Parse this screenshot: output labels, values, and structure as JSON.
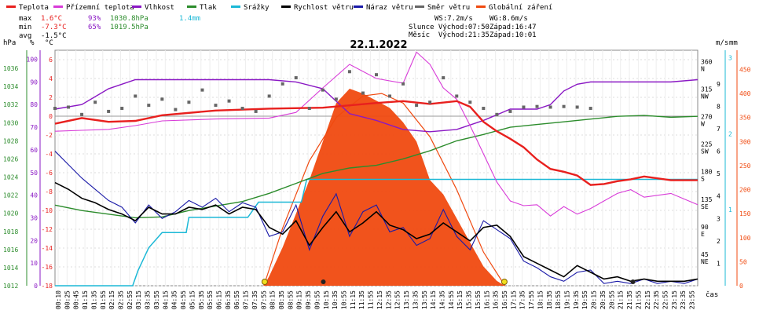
{
  "legend": [
    {
      "label": "Teplota",
      "color": "#e8201e"
    },
    {
      "label": "Přízemní teplota",
      "color": "#d83bd8"
    },
    {
      "label": "Vlhkost",
      "color": "#8a18c4"
    },
    {
      "label": "Tlak",
      "color": "#2c8c2c"
    },
    {
      "label": "Srážky",
      "color": "#1bb8d6"
    },
    {
      "label": "Rychlost větru",
      "color": "#000000"
    },
    {
      "label": "Náraz větru",
      "color": "#1a1aa8"
    },
    {
      "label": "Směr větru",
      "color": "#666666"
    },
    {
      "label": "Globální záření",
      "color": "#f04a10"
    }
  ],
  "stats": {
    "max": {
      "label": "max",
      "temp": "1.6°C",
      "hum": "93%",
      "press": "1030.8hPa",
      "rain": "1.4mm"
    },
    "min": {
      "label": "min",
      "temp": "-7.3°C",
      "hum": "65%",
      "press": "1019.5hPa"
    },
    "avg": {
      "label": "avg",
      "temp": "-1.5°C"
    },
    "ws": "WS:7.2m/s",
    "wg": "WG:8.6m/s",
    "sun_rise": "Slunce Východ:07:50",
    "sun_set": "Západ:16:47",
    "moon_rise": "Měsíc  Východ:21:35",
    "moon_set": "Západ:10:01"
  },
  "colors": {
    "temp": "#e8201e",
    "dew": "#d83bd8",
    "hum": "#8a18c4",
    "press": "#2c8c2c",
    "rain": "#1bb8d6",
    "wind": "#000000",
    "gust": "#1a1aa8",
    "dir": "#666666",
    "solar": "#f04a10",
    "grid": "#c8c8c8"
  },
  "chart_data": {
    "type": "line",
    "title": "22.1.2022",
    "xlabel": "čas",
    "x_ticks": [
      "00:10",
      "00:25",
      "00:45",
      "01:15",
      "01:35",
      "01:55",
      "02:15",
      "02:35",
      "02:55",
      "03:15",
      "03:35",
      "03:55",
      "04:15",
      "04:35",
      "04:55",
      "05:15",
      "05:35",
      "05:55",
      "06:15",
      "06:35",
      "06:55",
      "07:15",
      "07:35",
      "07:55",
      "08:15",
      "08:35",
      "08:55",
      "09:15",
      "09:35",
      "09:55",
      "10:15",
      "10:35",
      "10:55",
      "11:15",
      "11:35",
      "11:55",
      "12:15",
      "12:35",
      "12:55",
      "13:15",
      "13:35",
      "13:55",
      "14:15",
      "14:35",
      "14:55",
      "15:15",
      "15:35",
      "15:55",
      "16:15",
      "16:35",
      "16:55",
      "17:15",
      "17:35",
      "17:55",
      "18:15",
      "18:35",
      "18:55",
      "19:15",
      "19:35",
      "19:55",
      "20:15",
      "20:35",
      "20:55",
      "21:15",
      "21:35",
      "21:55",
      "22:15",
      "22:35",
      "22:55",
      "23:15",
      "23:35",
      "23:55"
    ],
    "axes": {
      "hPa": {
        "label": "hPa",
        "range": [
          1012,
          1038
        ],
        "ticks": [
          1012,
          1014,
          1016,
          1018,
          1020,
          1022,
          1024,
          1026,
          1028,
          1030,
          1032,
          1034,
          1036
        ]
      },
      "percent": {
        "label": "%",
        "range": [
          0,
          104
        ],
        "ticks": [
          0,
          10,
          20,
          30,
          40,
          50,
          60,
          70,
          80,
          90,
          100
        ]
      },
      "celsius": {
        "label": "°C",
        "range": [
          -18,
          7
        ],
        "ticks": [
          -18,
          -16,
          -14,
          -12,
          -10,
          -8,
          -6,
          -4,
          -2,
          0,
          2,
          4,
          6
        ]
      },
      "ms": {
        "label": "m/s",
        "range": [
          0,
          10.5
        ],
        "ticks": [
          1,
          2,
          3,
          4,
          5,
          6,
          7,
          8,
          9
        ]
      },
      "mm": {
        "label": "mm",
        "range": [
          0,
          3.1
        ],
        "ticks": [
          1,
          2,
          3
        ]
      },
      "direction": {
        "label": "",
        "ticks": [
          {
            "v": 45,
            "l": "NE"
          },
          {
            "v": 90,
            "l": "E"
          },
          {
            "v": 135,
            "l": "SE"
          },
          {
            "v": 180,
            "l": "S"
          },
          {
            "v": 225,
            "l": "SW"
          },
          {
            "v": 270,
            "l": "W"
          },
          {
            "v": 315,
            "l": "NW"
          },
          {
            "v": 360,
            "l": "N"
          }
        ]
      },
      "solar": {
        "label": "",
        "ticks": [
          0,
          50,
          100,
          150,
          200,
          250,
          300,
          350,
          400,
          450
        ]
      }
    },
    "series": [
      {
        "name": "Teplota",
        "unit": "°C",
        "x": [
          0,
          1,
          2,
          3,
          4,
          6,
          8,
          10,
          12,
          13,
          14,
          15,
          15.5,
          16,
          16.5,
          17,
          17.5,
          18,
          18.5,
          19,
          19.5,
          20,
          20.5,
          21,
          21.5,
          22,
          23,
          24
        ],
        "values": [
          -0.8,
          -0.2,
          -0.6,
          -0.5,
          0.1,
          0.6,
          0.8,
          0.9,
          1.4,
          1.6,
          1.3,
          1.6,
          1.0,
          -0.6,
          -1.6,
          -2.4,
          -3.3,
          -4.6,
          -5.6,
          -5.9,
          -6.3,
          -7.3,
          -7.2,
          -6.9,
          -6.7,
          -6.4,
          -6.8,
          -6.8
        ]
      },
      {
        "name": "Přízemní teplota",
        "unit": "°C",
        "x": [
          0,
          1,
          2,
          3,
          4,
          6,
          8,
          9,
          10,
          11,
          12,
          13,
          13.5,
          14,
          14.5,
          15,
          15.5,
          16,
          16.5,
          17,
          17.5,
          18,
          18.5,
          19,
          19.5,
          20,
          20.5,
          21,
          21.5,
          22,
          23,
          24
        ],
        "values": [
          -1.6,
          -1.5,
          -1.4,
          -1.0,
          -0.5,
          -0.3,
          -0.2,
          0.4,
          3,
          5.5,
          4,
          3.5,
          6.8,
          5.5,
          3,
          1.8,
          -1.0,
          -4,
          -7,
          -9,
          -9.5,
          -9.4,
          -10.6,
          -9.6,
          -10.4,
          -9.8,
          -9.0,
          -8.2,
          -7.8,
          -8.6,
          -8.2,
          -9.4
        ]
      },
      {
        "name": "Vlhkost",
        "unit": "%",
        "x": [
          0,
          1,
          2,
          3,
          4,
          5,
          6,
          8,
          9,
          10,
          11,
          12,
          13,
          14,
          15,
          16,
          17,
          18,
          18.5,
          19,
          19.5,
          20,
          21,
          22,
          23,
          24
        ],
        "values": [
          78,
          80,
          87,
          91,
          91,
          91,
          91,
          91,
          90,
          87,
          76,
          73,
          69,
          68,
          69,
          73,
          78,
          78,
          80,
          86,
          89,
          90,
          90,
          90,
          90,
          91
        ]
      },
      {
        "name": "Tlak",
        "unit": "hPa",
        "x": [
          0,
          1,
          2,
          3,
          4,
          5,
          6,
          7,
          8,
          9,
          10,
          11,
          12,
          13,
          14,
          15,
          16,
          17,
          18,
          19,
          20,
          21,
          22,
          23,
          24
        ],
        "values": [
          1020.9,
          1020.3,
          1019.9,
          1019.5,
          1019.6,
          1020.3,
          1020.8,
          1021.3,
          1022.2,
          1023.3,
          1024.4,
          1025.0,
          1025.3,
          1026.0,
          1026.9,
          1028.0,
          1028.7,
          1029.5,
          1029.8,
          1030.1,
          1030.4,
          1030.7,
          1030.8,
          1030.6,
          1030.7
        ]
      },
      {
        "name": "Srážky",
        "unit": "mm",
        "x": [
          0,
          2.9,
          3.1,
          3.5,
          4.0,
          4.9,
          5.0,
          7.2,
          7.6,
          9.2,
          9.4,
          24
        ],
        "values": [
          0,
          0,
          0.2,
          0.5,
          0.7,
          0.7,
          0.9,
          0.9,
          1.1,
          1.1,
          1.4,
          1.4
        ]
      },
      {
        "name": "Rychlost větru",
        "unit": "m/s",
        "x": [
          0,
          0.5,
          1,
          1.5,
          2,
          2.5,
          3,
          3.5,
          4,
          4.5,
          5,
          5.5,
          6,
          6.5,
          7,
          7.5,
          8,
          8.5,
          9,
          9.5,
          10,
          10.5,
          11,
          11.5,
          12,
          12.5,
          13,
          13.5,
          14,
          14.5,
          15,
          15.5,
          16,
          16.5,
          17,
          17.5,
          18,
          18.5,
          19,
          19.5,
          20,
          20.5,
          21,
          21.5,
          22,
          22.5,
          23,
          23.5,
          24
        ],
        "values": [
          4.6,
          4.3,
          3.9,
          3.7,
          3.4,
          3.2,
          2.9,
          3.5,
          3.2,
          3.2,
          3.5,
          3.4,
          3.6,
          3.2,
          3.5,
          3.4,
          2.6,
          2.3,
          2.9,
          1.8,
          2.6,
          3.3,
          2.4,
          2.8,
          3.3,
          2.7,
          2.5,
          2.1,
          2.3,
          2.8,
          2.4,
          2.0,
          2.6,
          2.7,
          2.2,
          1.3,
          1.0,
          0.7,
          0.4,
          0.9,
          0.6,
          0.3,
          0.4,
          0.2,
          0.3,
          0.2,
          0.2,
          0.2,
          0.3
        ]
      },
      {
        "name": "Náraz větru",
        "unit": "m/s",
        "x": [
          0,
          0.5,
          1,
          1.5,
          2,
          2.5,
          3,
          3.5,
          4,
          4.5,
          5,
          5.5,
          6,
          6.5,
          7,
          7.5,
          8,
          8.5,
          9,
          9.5,
          10,
          10.5,
          11,
          11.5,
          12,
          12.5,
          13,
          13.5,
          14,
          14.5,
          15,
          15.5,
          16,
          16.5,
          17,
          17.5,
          18,
          18.5,
          19,
          19.5,
          20,
          20.5,
          21,
          21.5,
          22,
          22.5,
          23,
          23.5,
          24
        ],
        "values": [
          6.0,
          5.4,
          4.8,
          4.3,
          3.8,
          3.5,
          2.8,
          3.6,
          3.0,
          3.3,
          3.8,
          3.5,
          3.9,
          3.3,
          3.7,
          3.5,
          2.2,
          2.4,
          3.6,
          1.6,
          3.1,
          4.1,
          2.2,
          3.3,
          3.6,
          2.4,
          2.6,
          1.8,
          2.1,
          3.4,
          2.2,
          1.6,
          2.9,
          2.5,
          2.1,
          1.1,
          0.8,
          0.4,
          0.2,
          0.6,
          0.7,
          0.1,
          0.2,
          0.1,
          0.3,
          0.1,
          0.2,
          0.1,
          0.3
        ]
      },
      {
        "name": "Směr větru",
        "unit": "°",
        "x": [
          0,
          0.5,
          1,
          1.5,
          2,
          2.5,
          3,
          3.5,
          4,
          4.5,
          5,
          5.5,
          6,
          6.5,
          7,
          7.5,
          8,
          8.5,
          9,
          9.5,
          10,
          10.5,
          11,
          11.5,
          12,
          12.5,
          13,
          13.5,
          14,
          14.5,
          15,
          15.5,
          16,
          16.5,
          17,
          17.5,
          18,
          18.5,
          19,
          19.5,
          20
        ],
        "values": [
          290,
          292,
          280,
          300,
          285,
          290,
          310,
          295,
          305,
          288,
          300,
          320,
          295,
          302,
          290,
          285,
          310,
          330,
          340,
          290,
          320,
          305,
          350,
          315,
          345,
          310,
          330,
          295,
          300,
          340,
          310,
          300,
          290,
          280,
          285,
          292,
          293,
          292,
          293,
          292,
          290
        ]
      },
      {
        "name": "Globální záření",
        "unit": "W/m²",
        "x": [
          7.8,
          8.0,
          8.5,
          9.0,
          9.5,
          10.0,
          10.5,
          11.0,
          11.5,
          12.0,
          12.5,
          13.0,
          13.5,
          14.0,
          14.5,
          15.0,
          15.5,
          16.0,
          16.5,
          16.8
        ],
        "values": [
          0,
          20,
          80,
          150,
          220,
          300,
          380,
          410,
          400,
          385,
          370,
          340,
          300,
          220,
          190,
          140,
          90,
          40,
          10,
          0
        ]
      }
    ],
    "solar_clear_sky": {
      "x": [
        7.8,
        8.5,
        9.5,
        10.5,
        11.5,
        12.2,
        13,
        14,
        15,
        16,
        16.8
      ],
      "values": [
        0,
        120,
        260,
        350,
        395,
        400,
        380,
        310,
        200,
        70,
        0
      ]
    },
    "markers": {
      "sunrise_x": 7.83,
      "sunset_x": 16.78,
      "moonset_x": 10.02,
      "moonrise_x": 21.58
    }
  }
}
